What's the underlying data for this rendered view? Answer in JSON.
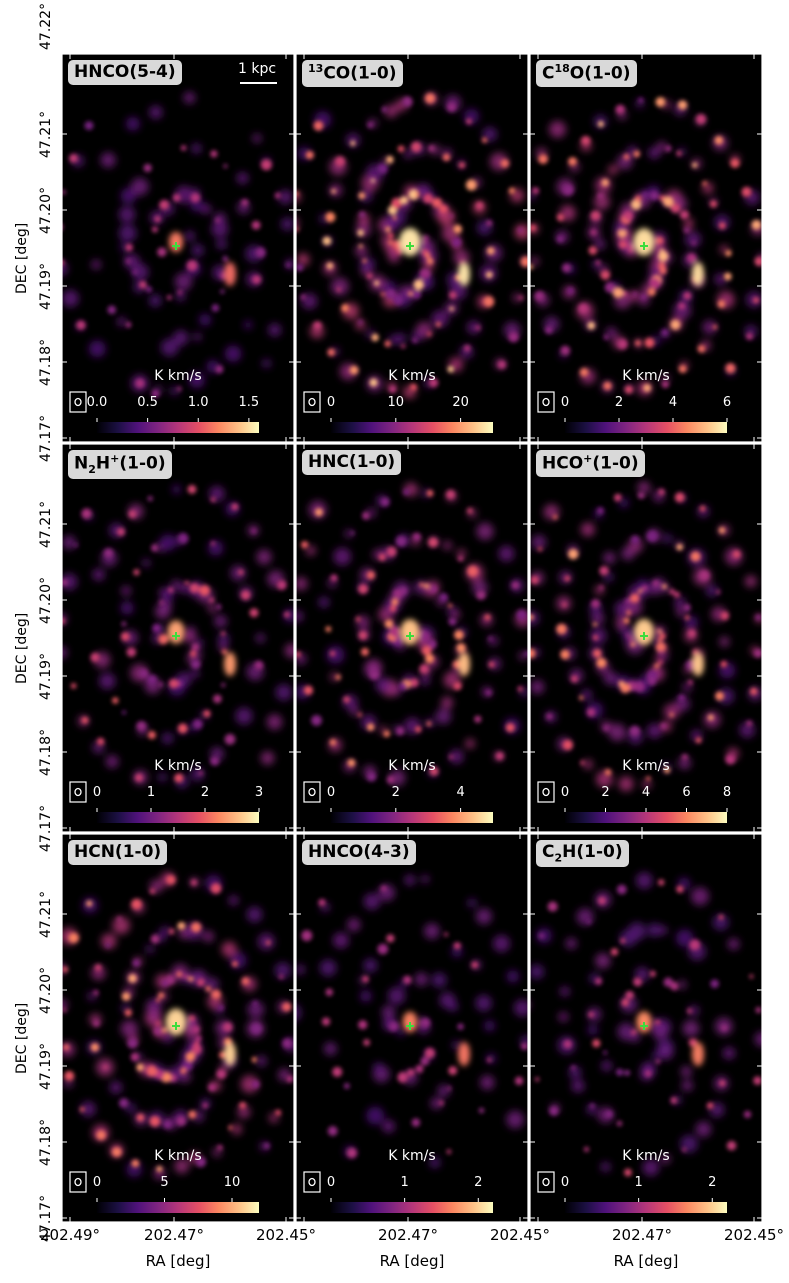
{
  "figure": {
    "ylabel": "DEC [deg]",
    "xlabel": "RA [deg]",
    "dec_ticks": [
      "47.22°",
      "47.21°",
      "47.20°",
      "47.19°",
      "47.18°",
      "47.17°"
    ],
    "ra_ticks": [
      "202.49°",
      "202.47°",
      "202.45°"
    ],
    "colormap": "magma",
    "scalebar_label": "1 kpc",
    "colorbar_unit": "K km/s"
  },
  "panels": [
    {
      "id": "hnco54",
      "title_main": "HNCO(5-4)",
      "title_sup": "",
      "title_sub": "",
      "title_pre": "",
      "title_post": "",
      "ticks": [
        "0.0",
        "0.5",
        "1.0",
        "1.5"
      ],
      "vmax": 1.6,
      "brightness": 0.35
    },
    {
      "id": "co13",
      "title_pre": "",
      "title_sup": "13",
      "title_main": "CO(1-0)",
      "title_sub": "",
      "title_post": "",
      "ticks": [
        "0",
        "10",
        "20"
      ],
      "vmax": 25,
      "brightness": 1.0
    },
    {
      "id": "c18o",
      "title_pre": "C",
      "title_sup": "18",
      "title_main": "O(1-0)",
      "title_sub": "",
      "title_post": "",
      "ticks": [
        "0",
        "2",
        "4",
        "6"
      ],
      "vmax": 6,
      "brightness": 0.95
    },
    {
      "id": "n2h",
      "title_pre": "N",
      "title_sub": "2",
      "title_main": "H",
      "title_sup": "+",
      "title_post": "(1-0)",
      "ticks": [
        "0",
        "1",
        "2",
        "3"
      ],
      "vmax": 3,
      "brightness": 0.6
    },
    {
      "id": "hnc",
      "title_pre": "",
      "title_sup": "",
      "title_sub": "",
      "title_main": "HNC(1-0)",
      "title_post": "",
      "ticks": [
        "0",
        "2",
        "4"
      ],
      "vmax": 5,
      "brightness": 0.8
    },
    {
      "id": "hcop",
      "title_pre": "",
      "title_sub": "",
      "title_main": "HCO",
      "title_sup": "+",
      "title_post": "(1-0)",
      "ticks": [
        "0",
        "2",
        "4",
        "6",
        "8"
      ],
      "vmax": 8,
      "brightness": 0.85
    },
    {
      "id": "hcn",
      "title_pre": "",
      "title_sup": "",
      "title_sub": "",
      "title_main": "HCN(1-0)",
      "title_post": "",
      "ticks": [
        "0",
        "5",
        "10"
      ],
      "vmax": 12,
      "brightness": 0.9
    },
    {
      "id": "hnco43",
      "title_pre": "",
      "title_sup": "",
      "title_sub": "",
      "title_main": "HNCO(4-3)",
      "title_post": "",
      "ticks": [
        "0",
        "1",
        "2"
      ],
      "vmax": 2.2,
      "brightness": 0.4
    },
    {
      "id": "c2h",
      "title_pre": "C",
      "title_sub": "2",
      "title_main": "H(1-0)",
      "title_sup": "",
      "title_post": "",
      "ticks": [
        "0",
        "1",
        "2"
      ],
      "vmax": 2.2,
      "brightness": 0.45
    }
  ],
  "colors": {
    "marker": "#3ddc3d",
    "background": "#000000",
    "frame": "#ffffff"
  }
}
